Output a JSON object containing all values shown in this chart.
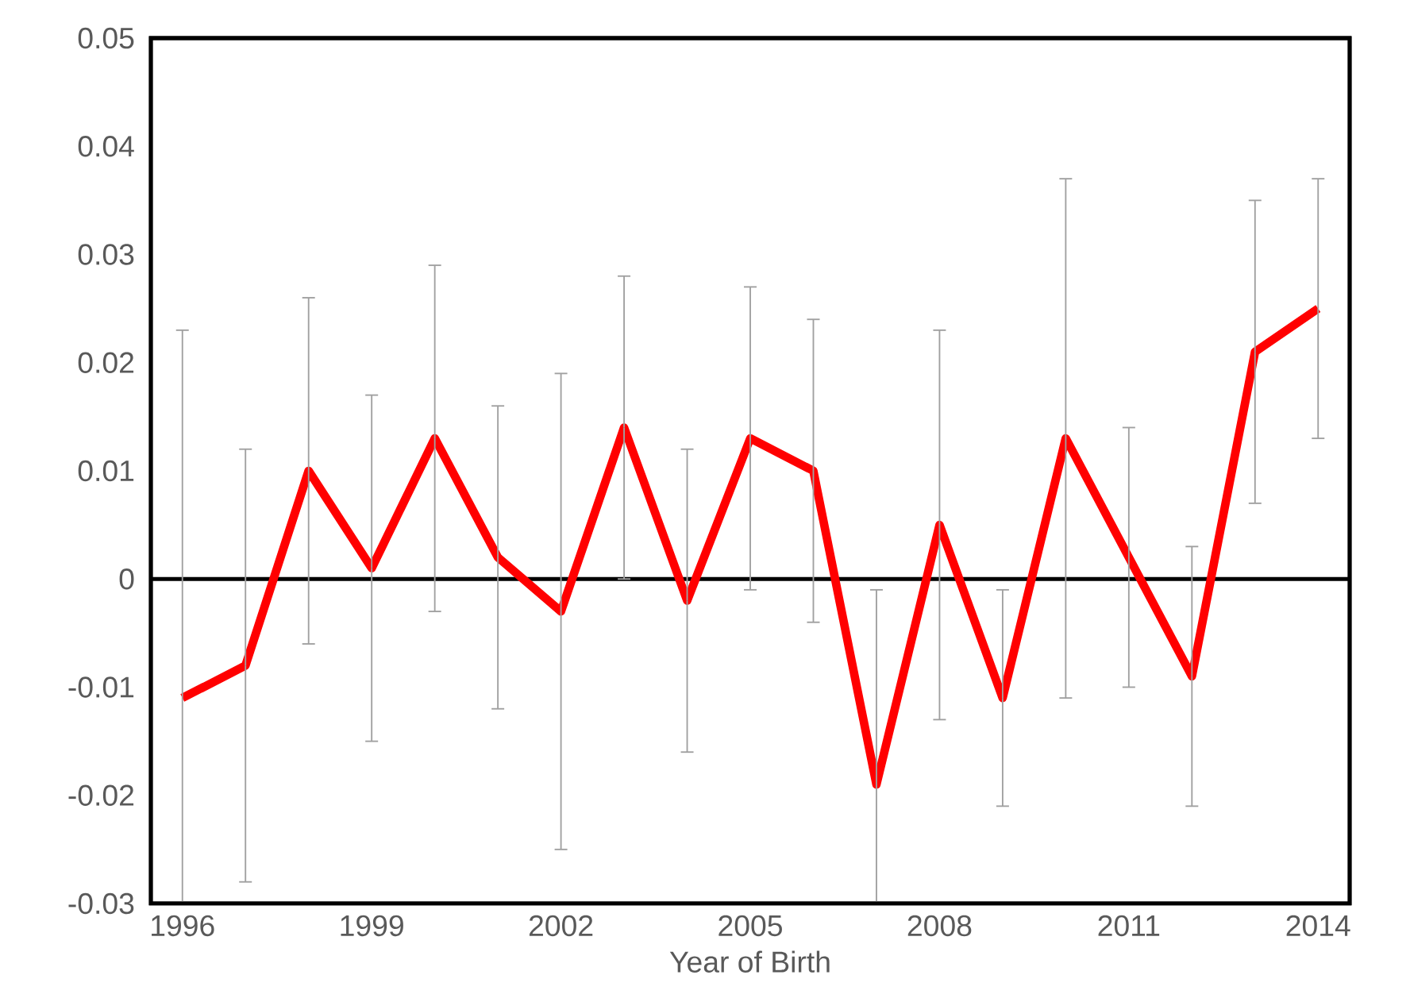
{
  "chart_data": {
    "type": "line",
    "xlabel": "Year of Birth",
    "x": [
      1996,
      1997,
      1998,
      1999,
      2000,
      2001,
      2002,
      2003,
      2004,
      2005,
      2006,
      2007,
      2008,
      2009,
      2010,
      2011,
      2012,
      2013,
      2014
    ],
    "series": [
      {
        "color": "#ff0000",
        "values": [
          -0.011,
          -0.008,
          0.01,
          0.001,
          0.013,
          0.002,
          -0.003,
          0.014,
          -0.002,
          0.013,
          0.01,
          -0.019,
          0.005,
          -0.011,
          0.013,
          0.002,
          -0.009,
          0.021,
          0.025
        ],
        "errors": [
          [
            -0.03,
            0.023
          ],
          [
            -0.028,
            0.012
          ],
          [
            -0.006,
            0.026
          ],
          [
            -0.015,
            0.017
          ],
          [
            -0.003,
            0.029
          ],
          [
            -0.012,
            0.016
          ],
          [
            -0.025,
            0.019
          ],
          [
            0.0,
            0.028
          ],
          [
            -0.016,
            0.012
          ],
          [
            -0.001,
            0.027
          ],
          [
            -0.004,
            0.024
          ],
          [
            -0.03,
            -0.001
          ],
          [
            -0.013,
            0.023
          ],
          [
            -0.021,
            -0.001
          ],
          [
            -0.011,
            0.037
          ],
          [
            -0.01,
            0.014
          ],
          [
            -0.021,
            0.003
          ],
          [
            0.007,
            0.035
          ],
          [
            0.013,
            0.037
          ]
        ]
      }
    ],
    "xlim": [
      1995.5,
      2014.5
    ],
    "xticks": [
      1996,
      1999,
      2002,
      2005,
      2008,
      2011,
      2014
    ],
    "ref_lines": [
      {
        "axis": "y",
        "value": 0,
        "color": "#000000"
      }
    ],
    "ylim": [
      -0.03,
      0.05
    ],
    "yticks": [
      -0.03,
      -0.02,
      -0.01,
      0,
      0.01,
      0.02,
      0.03,
      0.04,
      0.05
    ]
  }
}
